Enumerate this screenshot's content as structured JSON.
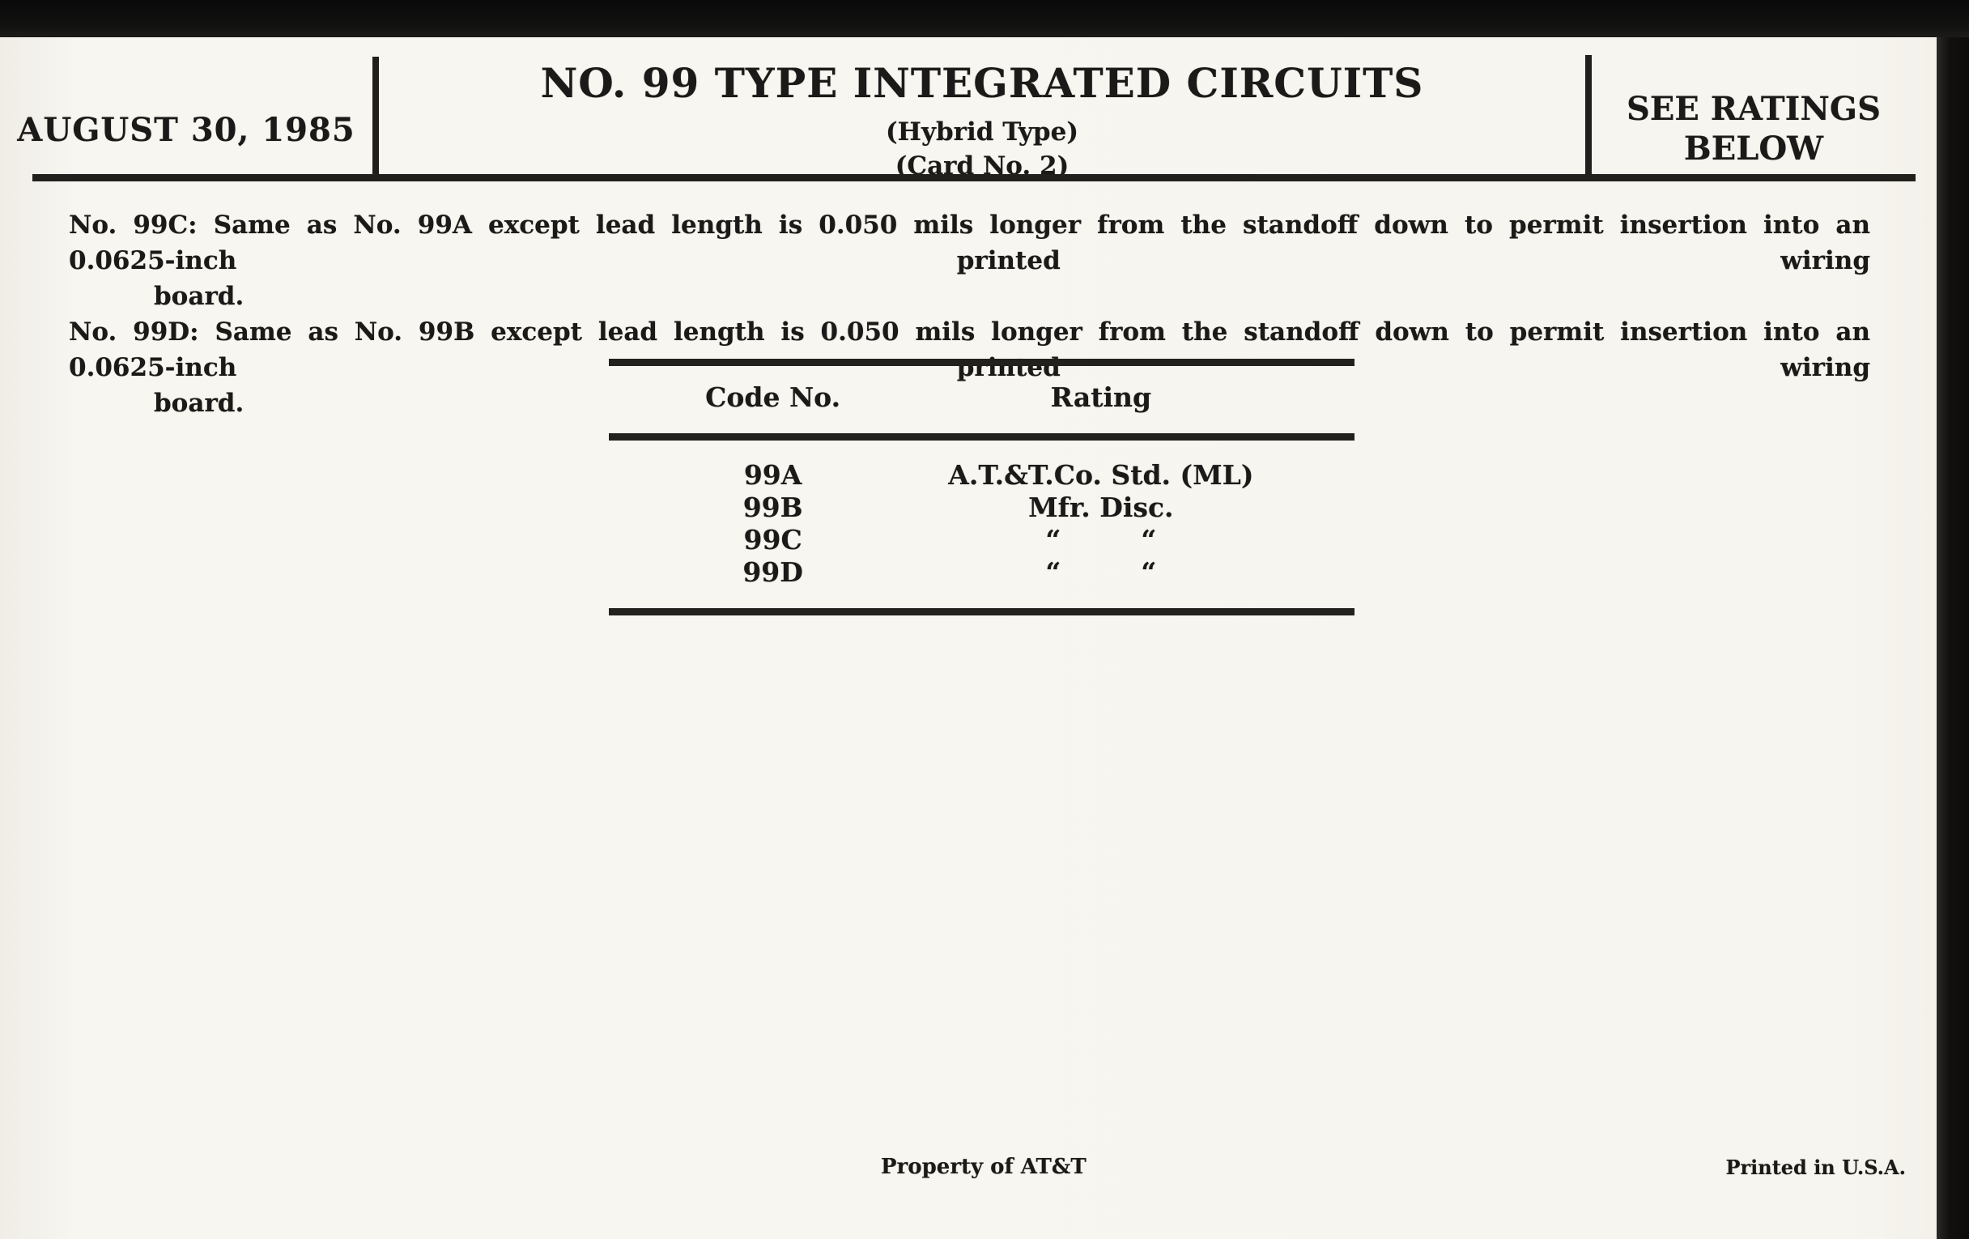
{
  "header": {
    "date": "AUGUST 30, 1985",
    "title": "NO. 99 TYPE INTEGRATED CIRCUITS",
    "subtitle_type": "(Hybrid Type)",
    "subtitle_card": "(Card No. 2)",
    "ratings_note_line1": "SEE RATINGS",
    "ratings_note_line2": "BELOW"
  },
  "notes": [
    {
      "label": "No. 99C:",
      "body": "Same as No. 99A except lead length is 0.050 mils longer from the standoff down to permit insertion into an 0.0625-inch printed wiring",
      "continuation": "board."
    },
    {
      "label": "No. 99D:",
      "body": "Same as No. 99B except lead length is 0.050 mils longer from the standoff down to permit insertion into an 0.0625-inch printed wiring",
      "continuation": "board."
    }
  ],
  "table": {
    "col_headers": [
      "Code No.",
      "Rating"
    ],
    "rows": [
      {
        "code": "99A",
        "rating": "A.T.&T.Co. Std. (ML)"
      },
      {
        "code": "99B",
        "rating": "Mfr. Disc."
      },
      {
        "code": "99C",
        "rating": "“   “"
      },
      {
        "code": "99D",
        "rating": "“   “"
      }
    ]
  },
  "footer": {
    "property": "Property of AT&T",
    "printed": "Printed in U.S.A."
  },
  "colors": {
    "paper": "#f7f5ef",
    "ink": "#1c1a18",
    "rule": "#22201d",
    "scan_edge": "#121211"
  }
}
